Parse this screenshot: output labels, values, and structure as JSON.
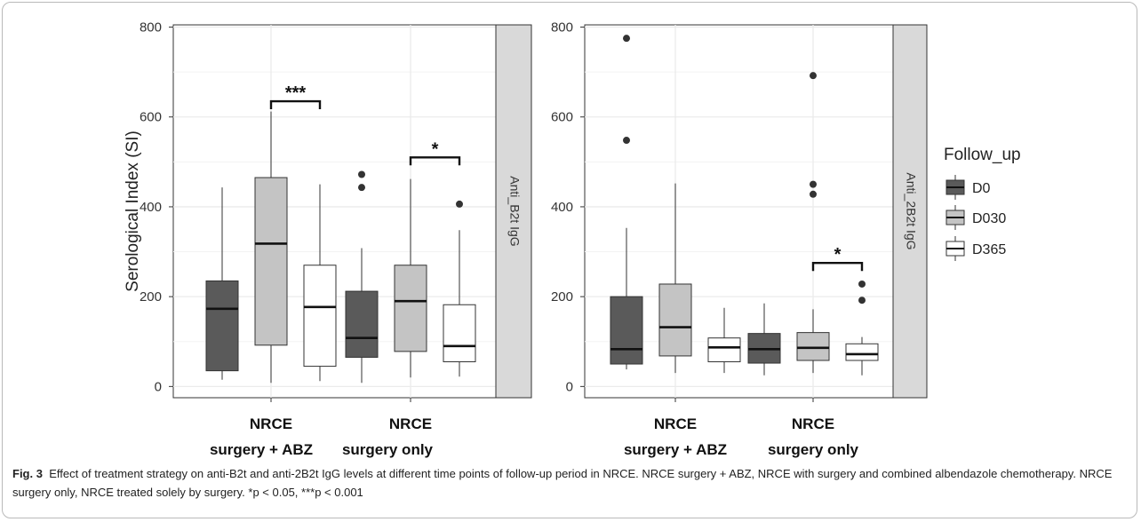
{
  "chart_data": [
    {
      "type": "box",
      "ylabel": "Serological Index (SI)",
      "ylim": [
        -25,
        805
      ],
      "yticks": [
        0,
        200,
        400,
        600,
        800
      ],
      "grid": true,
      "facet_label": "Anti_B2t IgG",
      "categories": [
        [
          "NRCE",
          "surgery + ABZ"
        ],
        [
          "NRCE",
          "surgery only"
        ]
      ],
      "series": [
        {
          "name": "D0",
          "boxes": [
            {
              "whisker_low": 15,
              "q1": 35,
              "median": 173,
              "q3": 235,
              "whisker_high": 443,
              "outliers": []
            },
            {
              "whisker_low": 8,
              "q1": 65,
              "median": 108,
              "q3": 212,
              "whisker_high": 308,
              "outliers": [
                443,
                472
              ]
            }
          ]
        },
        {
          "name": "D030",
          "boxes": [
            {
              "whisker_low": 8,
              "q1": 92,
              "median": 318,
              "q3": 465,
              "whisker_high": 612,
              "outliers": []
            },
            {
              "whisker_low": 20,
              "q1": 78,
              "median": 190,
              "q3": 270,
              "whisker_high": 462,
              "outliers": []
            }
          ]
        },
        {
          "name": "D365",
          "boxes": [
            {
              "whisker_low": 12,
              "q1": 45,
              "median": 177,
              "q3": 270,
              "whisker_high": 450,
              "outliers": []
            },
            {
              "whisker_low": 22,
              "q1": 55,
              "median": 90,
              "q3": 182,
              "whisker_high": 348,
              "outliers": [
                406
              ]
            }
          ]
        }
      ],
      "significance": [
        {
          "category": 0,
          "from": "D030",
          "to": "D365",
          "y": 635,
          "label": "***"
        },
        {
          "category": 1,
          "from": "D030",
          "to": "D365",
          "y": 510,
          "label": "*"
        }
      ]
    },
    {
      "type": "box",
      "ylabel": "",
      "ylim": [
        -25,
        805
      ],
      "yticks": [
        0,
        200,
        400,
        600,
        800
      ],
      "grid": true,
      "facet_label": "Anti_2B2t IgG",
      "categories": [
        [
          "NRCE",
          "surgery + ABZ"
        ],
        [
          "NRCE",
          "surgery only"
        ]
      ],
      "series": [
        {
          "name": "D0",
          "boxes": [
            {
              "whisker_low": 38,
              "q1": 50,
              "median": 83,
              "q3": 200,
              "whisker_high": 353,
              "outliers": [
                548,
                775
              ]
            },
            {
              "whisker_low": 25,
              "q1": 52,
              "median": 83,
              "q3": 118,
              "whisker_high": 185,
              "outliers": []
            }
          ]
        },
        {
          "name": "D030",
          "boxes": [
            {
              "whisker_low": 30,
              "q1": 68,
              "median": 132,
              "q3": 228,
              "whisker_high": 452,
              "outliers": []
            },
            {
              "whisker_low": 30,
              "q1": 58,
              "median": 86,
              "q3": 120,
              "whisker_high": 172,
              "outliers": [
                428,
                450,
                692
              ]
            }
          ]
        },
        {
          "name": "D365",
          "boxes": [
            {
              "whisker_low": 30,
              "q1": 55,
              "median": 87,
              "q3": 108,
              "whisker_high": 175,
              "outliers": []
            },
            {
              "whisker_low": 25,
              "q1": 58,
              "median": 72,
              "q3": 95,
              "whisker_high": 110,
              "outliers": [
                192,
                228
              ]
            }
          ]
        }
      ],
      "significance": [
        {
          "category": 1,
          "from": "D030",
          "to": "D365",
          "y": 275,
          "label": "*"
        }
      ]
    }
  ],
  "legend": {
    "title": "Follow_up",
    "placement": "right",
    "items": [
      {
        "label": "D0",
        "color": "#5a5a5a"
      },
      {
        "label": "D030",
        "color": "#c4c4c4"
      },
      {
        "label": "D365",
        "color": "#ffffff"
      }
    ]
  },
  "caption": {
    "fig_label": "Fig. 3",
    "text": "Effect of treatment strategy on anti-B2t and anti-2B2t IgG levels at different time points of follow-up period in NRCE. NRCE surgery + ABZ, NRCE with surgery and combined albendazole chemotherapy. NRCE surgery only, NRCE treated solely by surgery. *p < 0.05, ***p < 0.001"
  },
  "colors": {
    "D0": "#5a5a5a",
    "D030": "#c4c4c4",
    "D365": "#ffffff",
    "strip": "#d9d9d9",
    "grid": "#ebebeb",
    "line": "#333333"
  }
}
